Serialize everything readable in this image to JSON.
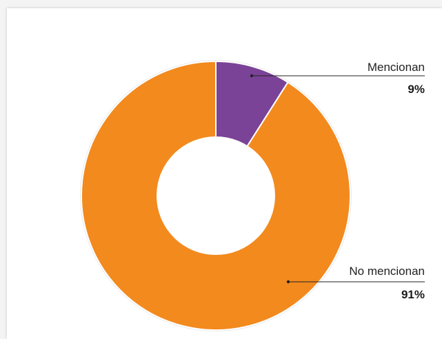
{
  "chart_data": {
    "type": "pie",
    "donut": true,
    "title": "",
    "slices": [
      {
        "label": "Mencionan",
        "value": 9,
        "display": "9%",
        "color": "#7b4397"
      },
      {
        "label": "No mencionan",
        "value": 91,
        "display": "91%",
        "color": "#f28a1e"
      }
    ],
    "start_angle_deg": 0,
    "direction": "clockwise",
    "legend": "callout labels on right"
  }
}
